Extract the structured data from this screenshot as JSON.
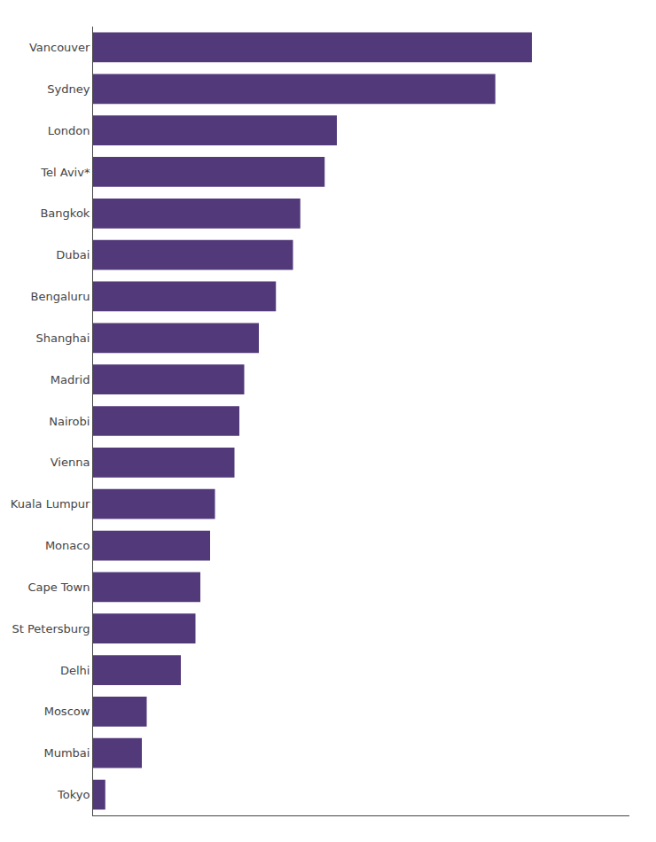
{
  "chart_data": {
    "type": "bar",
    "orientation": "horizontal",
    "categories": [
      "Vancouver",
      "Sydney",
      "London",
      "Tel Aviv*",
      "Bangkok",
      "Dubai",
      "Bengaluru",
      "Shanghai",
      "Madrid",
      "Nairobi",
      "Vienna",
      "Kuala Lumpur",
      "Monaco",
      "Cape Town",
      "St Petersburg",
      "Delhi",
      "Moscow",
      "Mumbai",
      "Tokyo"
    ],
    "values": [
      18.0,
      16.5,
      10.0,
      9.5,
      8.5,
      8.2,
      7.5,
      6.8,
      6.2,
      6.0,
      5.8,
      5.0,
      4.8,
      4.4,
      4.2,
      3.6,
      2.2,
      2.0,
      0.5
    ],
    "color": "#52397A",
    "xlim": [
      0,
      22
    ],
    "grid": false,
    "tick_labels": "y"
  }
}
